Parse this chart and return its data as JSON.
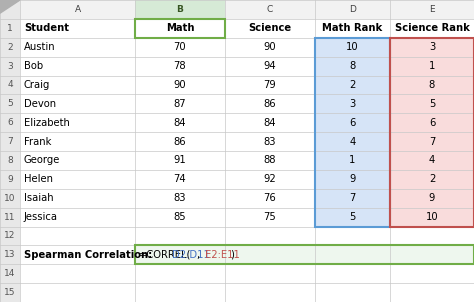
{
  "col_headers": [
    "A",
    "B",
    "C",
    "D",
    "E"
  ],
  "header_row": [
    "Student",
    "Math",
    "Science",
    "Math Rank",
    "Science Rank"
  ],
  "students": [
    "Austin",
    "Bob",
    "Craig",
    "Devon",
    "Elizabeth",
    "Frank",
    "George",
    "Helen",
    "Isaiah",
    "Jessica"
  ],
  "math": [
    70,
    78,
    90,
    87,
    84,
    86,
    91,
    74,
    83,
    85
  ],
  "science": [
    90,
    94,
    79,
    86,
    84,
    83,
    88,
    92,
    76,
    75
  ],
  "math_rank": [
    10,
    8,
    2,
    3,
    6,
    4,
    1,
    9,
    7,
    5
  ],
  "science_rank": [
    3,
    1,
    8,
    5,
    6,
    7,
    4,
    2,
    9,
    10
  ],
  "label_row13": "Spearman Correlation:",
  "color_blue_bg": "#D6E4F7",
  "color_red_bg": "#F9DCDC",
  "color_blue_border": "#5B9BD5",
  "color_green_border": "#70AD47",
  "color_header_bg": "#F2F2F2",
  "color_rownum_bg": "#E8E8E8",
  "color_col_b_header_bg": "#D6EAD6",
  "color_grid": "#C8C8C8",
  "color_black": "#000000",
  "color_blue_text": "#4472C4",
  "color_dark_red": "#C0504D",
  "color_green_text": "#375623"
}
